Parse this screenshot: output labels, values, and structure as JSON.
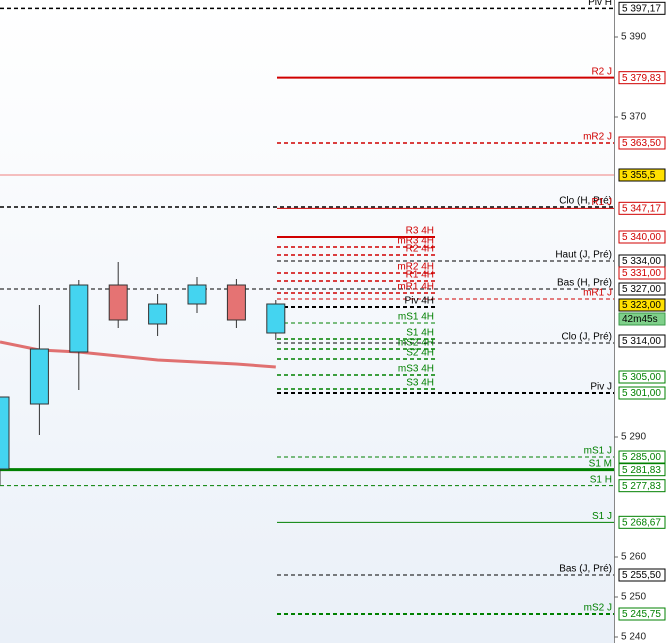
{
  "chart_data": {
    "type": "candlestick",
    "ylim": [
      5238.5,
      5399.25
    ],
    "yticks": [
      {
        "value": 5390,
        "label": "5 390"
      },
      {
        "value": 5370,
        "label": "5 370"
      },
      {
        "value": 5290,
        "label": "5 290"
      },
      {
        "value": 5260,
        "label": "5 260"
      },
      {
        "value": 5250,
        "label": "5 250"
      },
      {
        "value": 5240,
        "label": "5 240"
      }
    ],
    "up_color": "#44d4f0",
    "down_color": "#e57373",
    "open": [
      5282,
      5298.25,
      5311.25,
      5328,
      5318.25,
      5323.25,
      5328,
      5316
    ],
    "high": [
      5300,
      5323,
      5329.25,
      5333.75,
      5325.75,
      5330,
      5329.5,
      5324.25
    ],
    "low": [
      5278,
      5290.5,
      5301.75,
      5317.25,
      5315.25,
      5321,
      5317.25,
      5314.25
    ],
    "close": [
      5300,
      5312,
      5328,
      5319.25,
      5323.25,
      5328,
      5319.25,
      5323.25
    ],
    "ma": {
      "color": "#e07070",
      "values": [
        5313.75,
        5311.75,
        5311.25,
        5310.25,
        5309.25,
        5308.75,
        5308.25,
        5307.5
      ]
    },
    "price_line": {
      "value": 5355.5,
      "color": "#f08080"
    },
    "levels": [
      {
        "name": "Piv H",
        "value": 5397.17,
        "color": "#000000",
        "style": "dashed",
        "width": 1.5,
        "extent": "full"
      },
      {
        "name": "R2 J",
        "value": 5379.83,
        "color": "#d00000",
        "style": "solid",
        "width": 2,
        "extent": "session"
      },
      {
        "name": "mR2 J",
        "value": 5363.5,
        "color": "#d00000",
        "style": "dashed",
        "width": 1.5,
        "extent": "session"
      },
      {
        "name": "Clo (H, Pré)",
        "value": 5347.5,
        "color": "#000000",
        "style": "dashed",
        "width": 1.5,
        "extent": "full"
      },
      {
        "name": "R1 J",
        "value": 5347.17,
        "color": "#d00000",
        "style": "solid",
        "width": 1,
        "extent": "session"
      },
      {
        "name": "R3 4H",
        "value": 5340,
        "color": "#d00000",
        "style": "solid",
        "width": 2,
        "extent": "4h"
      },
      {
        "name": "mR3 4H",
        "value": 5337.5,
        "color": "#d00000",
        "style": "dashed",
        "width": 1.5,
        "extent": "4h"
      },
      {
        "name": "R2 4H",
        "value": 5335.5,
        "color": "#d00000",
        "style": "dashed",
        "width": 1.5,
        "extent": "4h"
      },
      {
        "name": "Haut (J, Pré)",
        "value": 5334,
        "color": "#000000",
        "style": "dashed",
        "width": 1,
        "extent": "session"
      },
      {
        "name": "mR2 4H",
        "value": 5331,
        "color": "#d00000",
        "style": "dashed",
        "width": 1.5,
        "extent": "4h"
      },
      {
        "name": "R1 4H",
        "value": 5329,
        "color": "#d00000",
        "style": "dashed",
        "width": 1.5,
        "extent": "4h"
      },
      {
        "name": "Bas (H, Pré)",
        "value": 5327,
        "color": "#000000",
        "style": "dashed",
        "width": 1,
        "extent": "full"
      },
      {
        "name": "mR1 4H",
        "value": 5326,
        "color": "#d00000",
        "style": "dashed",
        "width": 1.5,
        "extent": "4h"
      },
      {
        "name": "mR1 J",
        "value": 5324.5,
        "color": "#d00000",
        "style": "dashed",
        "width": 1,
        "extent": "session"
      },
      {
        "name": "Piv 4H",
        "value": 5322.5,
        "color": "#000000",
        "style": "dashed",
        "width": 2,
        "extent": "4h"
      },
      {
        "name": "mS1 4H",
        "value": 5318.5,
        "color": "#008000",
        "style": "dashed",
        "width": 1,
        "extent": "4h"
      },
      {
        "name": "S1 4H",
        "value": 5314.5,
        "color": "#008000",
        "style": "dashed",
        "width": 1.5,
        "extent": "4h"
      },
      {
        "name": "Clo (J, Pré)",
        "value": 5313.5,
        "color": "#000000",
        "style": "dashed",
        "width": 1,
        "extent": "session"
      },
      {
        "name": "mS2 4H",
        "value": 5312,
        "color": "#008000",
        "style": "dashed",
        "width": 1.5,
        "extent": "4h"
      },
      {
        "name": "S2 4H",
        "value": 5309.5,
        "color": "#008000",
        "style": "dashed",
        "width": 1.5,
        "extent": "4h"
      },
      {
        "name": "mS3 4H",
        "value": 5305.5,
        "color": "#008000",
        "style": "dashed",
        "width": 1.5,
        "extent": "4h"
      },
      {
        "name": "S3 4H",
        "value": 5302,
        "color": "#008000",
        "style": "dashed",
        "width": 1.5,
        "extent": "4h"
      },
      {
        "name": "Piv J",
        "value": 5301,
        "color": "#000000",
        "style": "dashed",
        "width": 2,
        "extent": "session"
      },
      {
        "name": "mS1 J",
        "value": 5285,
        "color": "#008000",
        "style": "dashed",
        "width": 1,
        "extent": "session"
      },
      {
        "name": "S1 M",
        "value": 5281.83,
        "color": "#008000",
        "style": "solid",
        "width": 3,
        "extent": "full"
      },
      {
        "name": "S1 H",
        "value": 5277.83,
        "color": "#008000",
        "style": "dashed",
        "width": 1,
        "extent": "full"
      },
      {
        "name": "S1 J",
        "value": 5268.67,
        "color": "#008000",
        "style": "solid",
        "width": 1,
        "extent": "session"
      },
      {
        "name": "Bas (J, Pré)",
        "value": 5255.5,
        "color": "#000000",
        "style": "dashed",
        "width": 1,
        "extent": "session"
      },
      {
        "name": "mS2 J",
        "value": 5245.75,
        "color": "#008000",
        "style": "dashed",
        "width": 2,
        "extent": "session"
      }
    ],
    "price_labels": [
      {
        "value": 5397.17,
        "label": "5 397,17",
        "color": "#000000"
      },
      {
        "value": 5379.83,
        "label": "5 379,83",
        "color": "#d00000"
      },
      {
        "value": 5363.5,
        "label": "5 363,50",
        "color": "#d00000"
      },
      {
        "value": 5355.5,
        "label": "5 355,5",
        "color": "#000000",
        "fill": "#ffe000"
      },
      {
        "value": 5347.17,
        "label": "5 347,17",
        "color": "#d00000"
      },
      {
        "value": 5340,
        "label": "5 340,00",
        "color": "#d00000"
      },
      {
        "value": 5334,
        "label": "5 334,00",
        "color": "#000000"
      },
      {
        "value": 5331,
        "label": "5 331,00",
        "color": "#d00000"
      },
      {
        "value": 5327,
        "label": "5 327,00",
        "color": "#000000"
      },
      {
        "value": 5323,
        "label": "5 323,00",
        "color": "#000000",
        "fill": "#ffe000"
      },
      {
        "value": 5314,
        "label": "5 314,00",
        "color": "#000000"
      },
      {
        "value": 5305,
        "label": "5 305,00",
        "color": "#008000"
      },
      {
        "value": 5301,
        "label": "5 301,00",
        "color": "#008000"
      },
      {
        "value": 5285,
        "label": "5 285,00",
        "color": "#008000"
      },
      {
        "value": 5281.83,
        "label": "5 281,83",
        "color": "#008000"
      },
      {
        "value": 5277.83,
        "label": "5 277,83",
        "color": "#008000"
      },
      {
        "value": 5268.67,
        "label": "5 268,67",
        "color": "#008000"
      },
      {
        "value": 5255.5,
        "label": "5 255,50",
        "color": "#000000"
      },
      {
        "value": 5245.75,
        "label": "5 245,75",
        "color": "#008000"
      }
    ],
    "countdown": "42m45s"
  }
}
